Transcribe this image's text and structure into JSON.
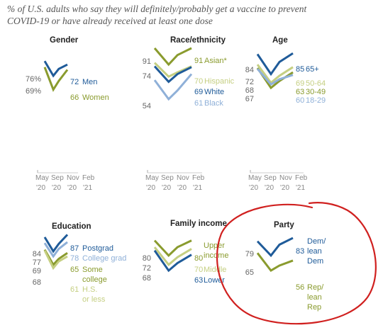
{
  "subtitle": "% of U.S. adults who say they will definitely/probably get a vaccine to prevent COVID-19 or have already received at least one dose",
  "colors": {
    "men": "#1f5b99",
    "women": "#8a9b2e",
    "asian": "#8a9b2e",
    "hispanic": "#c5cf82",
    "white": "#1f5b99",
    "black": "#8fb0d8",
    "age65": "#1f5b99",
    "age50": "#c5cf82",
    "age30": "#8a9b2e",
    "age18": "#8fb0d8",
    "postgrad": "#1f5b99",
    "college": "#8fb0d8",
    "somecollege": "#8a9b2e",
    "hs": "#c5cf82",
    "upper": "#8a9b2e",
    "middle": "#c5cf82",
    "lower": "#1f5b99",
    "dem": "#1f5b99",
    "rep": "#8a9b2e",
    "annotation": "#d0201f"
  },
  "x_ticks": {
    "months": [
      "May",
      "Sep",
      "Nov",
      "Feb"
    ],
    "years": [
      "'20",
      "'20",
      "'20",
      "'21"
    ]
  },
  "chart_data": [
    {
      "type": "line",
      "title": "Gender",
      "x": [
        "May '20",
        "Sep '20",
        "Nov '20",
        "Feb '21"
      ],
      "series": [
        {
          "name": "Men",
          "values": [
            76,
            59,
            67,
            72
          ],
          "start_label": "76%",
          "end_label": "72",
          "color_key": "men"
        },
        {
          "name": "Women",
          "values": [
            69,
            43,
            53,
            66
          ],
          "start_label": "69%",
          "end_label": "66",
          "color_key": "women"
        }
      ]
    },
    {
      "type": "line",
      "title": "Race/ethnicity",
      "x": [
        "May '20",
        "Sep '20",
        "Nov '20",
        "Feb '21"
      ],
      "series": [
        {
          "name": "Asian*",
          "values": [
            91,
            72,
            83,
            91
          ],
          "start_label": "91",
          "end_label": "91",
          "color_key": "asian"
        },
        {
          "name": "Hispanic",
          "values": [
            74,
            58,
            63,
            70
          ],
          "start_label": "74",
          "end_label": "70",
          "color_key": "hispanic"
        },
        {
          "name": "White",
          "values": [
            70,
            52,
            61,
            69
          ],
          "start_label": "",
          "end_label": "69",
          "color_key": "white"
        },
        {
          "name": "Black",
          "values": [
            54,
            32,
            42,
            61
          ],
          "start_label": "54",
          "end_label": "61",
          "color_key": "black"
        }
      ]
    },
    {
      "type": "line",
      "title": "Age",
      "x": [
        "May '20",
        "Sep '20",
        "Nov '20",
        "Feb '21"
      ],
      "series": [
        {
          "name": "65+",
          "values": [
            84,
            61,
            75,
            85
          ],
          "start_label": "84",
          "end_label": "85",
          "color_key": "age65"
        },
        {
          "name": "50-64",
          "values": [
            72,
            51,
            59,
            69
          ],
          "start_label": "72",
          "end_label": "69",
          "color_key": "age50"
        },
        {
          "name": "30-49",
          "values": [
            68,
            45,
            53,
            63
          ],
          "start_label": "68",
          "end_label": "63",
          "color_key": "age30"
        },
        {
          "name": "18-29",
          "values": [
            67,
            49,
            55,
            60
          ],
          "start_label": "67",
          "end_label": "60",
          "color_key": "age18"
        }
      ]
    },
    {
      "type": "line",
      "title": "Education",
      "x": [
        "May '20",
        "Sep '20",
        "Nov '20",
        "Feb '21"
      ],
      "series": [
        {
          "name": "Postgrad",
          "values": [
            84,
            67,
            76,
            87
          ],
          "start_label": "84",
          "end_label": "87",
          "color_key": "postgrad"
        },
        {
          "name": "College grad",
          "values": [
            77,
            61,
            70,
            78
          ],
          "start_label": "77",
          "end_label": "78",
          "color_key": "college"
        },
        {
          "name": "Some college",
          "values": [
            69,
            51,
            58,
            65
          ],
          "start_label": "69",
          "end_label": "65",
          "color_key": "somecollege"
        },
        {
          "name": "H.S. or less",
          "values": [
            68,
            47,
            55,
            61
          ],
          "start_label": "68",
          "end_label": "61",
          "color_key": "hs"
        }
      ]
    },
    {
      "type": "line",
      "title": "Family income",
      "x": [
        "May '20",
        "Sep '20",
        "Nov '20",
        "Feb '21"
      ],
      "series": [
        {
          "name": "Upper income",
          "values": [
            80,
            62,
            72,
            80
          ],
          "start_label": "80",
          "end_label": "80",
          "color_key": "upper"
        },
        {
          "name": "Middle",
          "values": [
            72,
            51,
            60,
            70
          ],
          "start_label": "72",
          "end_label": "70",
          "color_key": "middle"
        },
        {
          "name": "Lower",
          "values": [
            68,
            44,
            53,
            63
          ],
          "start_label": "68",
          "end_label": "63",
          "color_key": "lower"
        }
      ]
    },
    {
      "type": "line",
      "title": "Party",
      "x": [
        "May '20",
        "Sep '20",
        "Nov '20",
        "Feb '21"
      ],
      "series": [
        {
          "name": "Dem/ lean Dem",
          "values": [
            79,
            62,
            75,
            83
          ],
          "start_label": "79",
          "end_label": "83",
          "color_key": "dem"
        },
        {
          "name": "Rep/ lean Rep",
          "values": [
            65,
            44,
            50,
            56
          ],
          "start_label": "65",
          "end_label": "56",
          "color_key": "rep"
        }
      ]
    }
  ]
}
